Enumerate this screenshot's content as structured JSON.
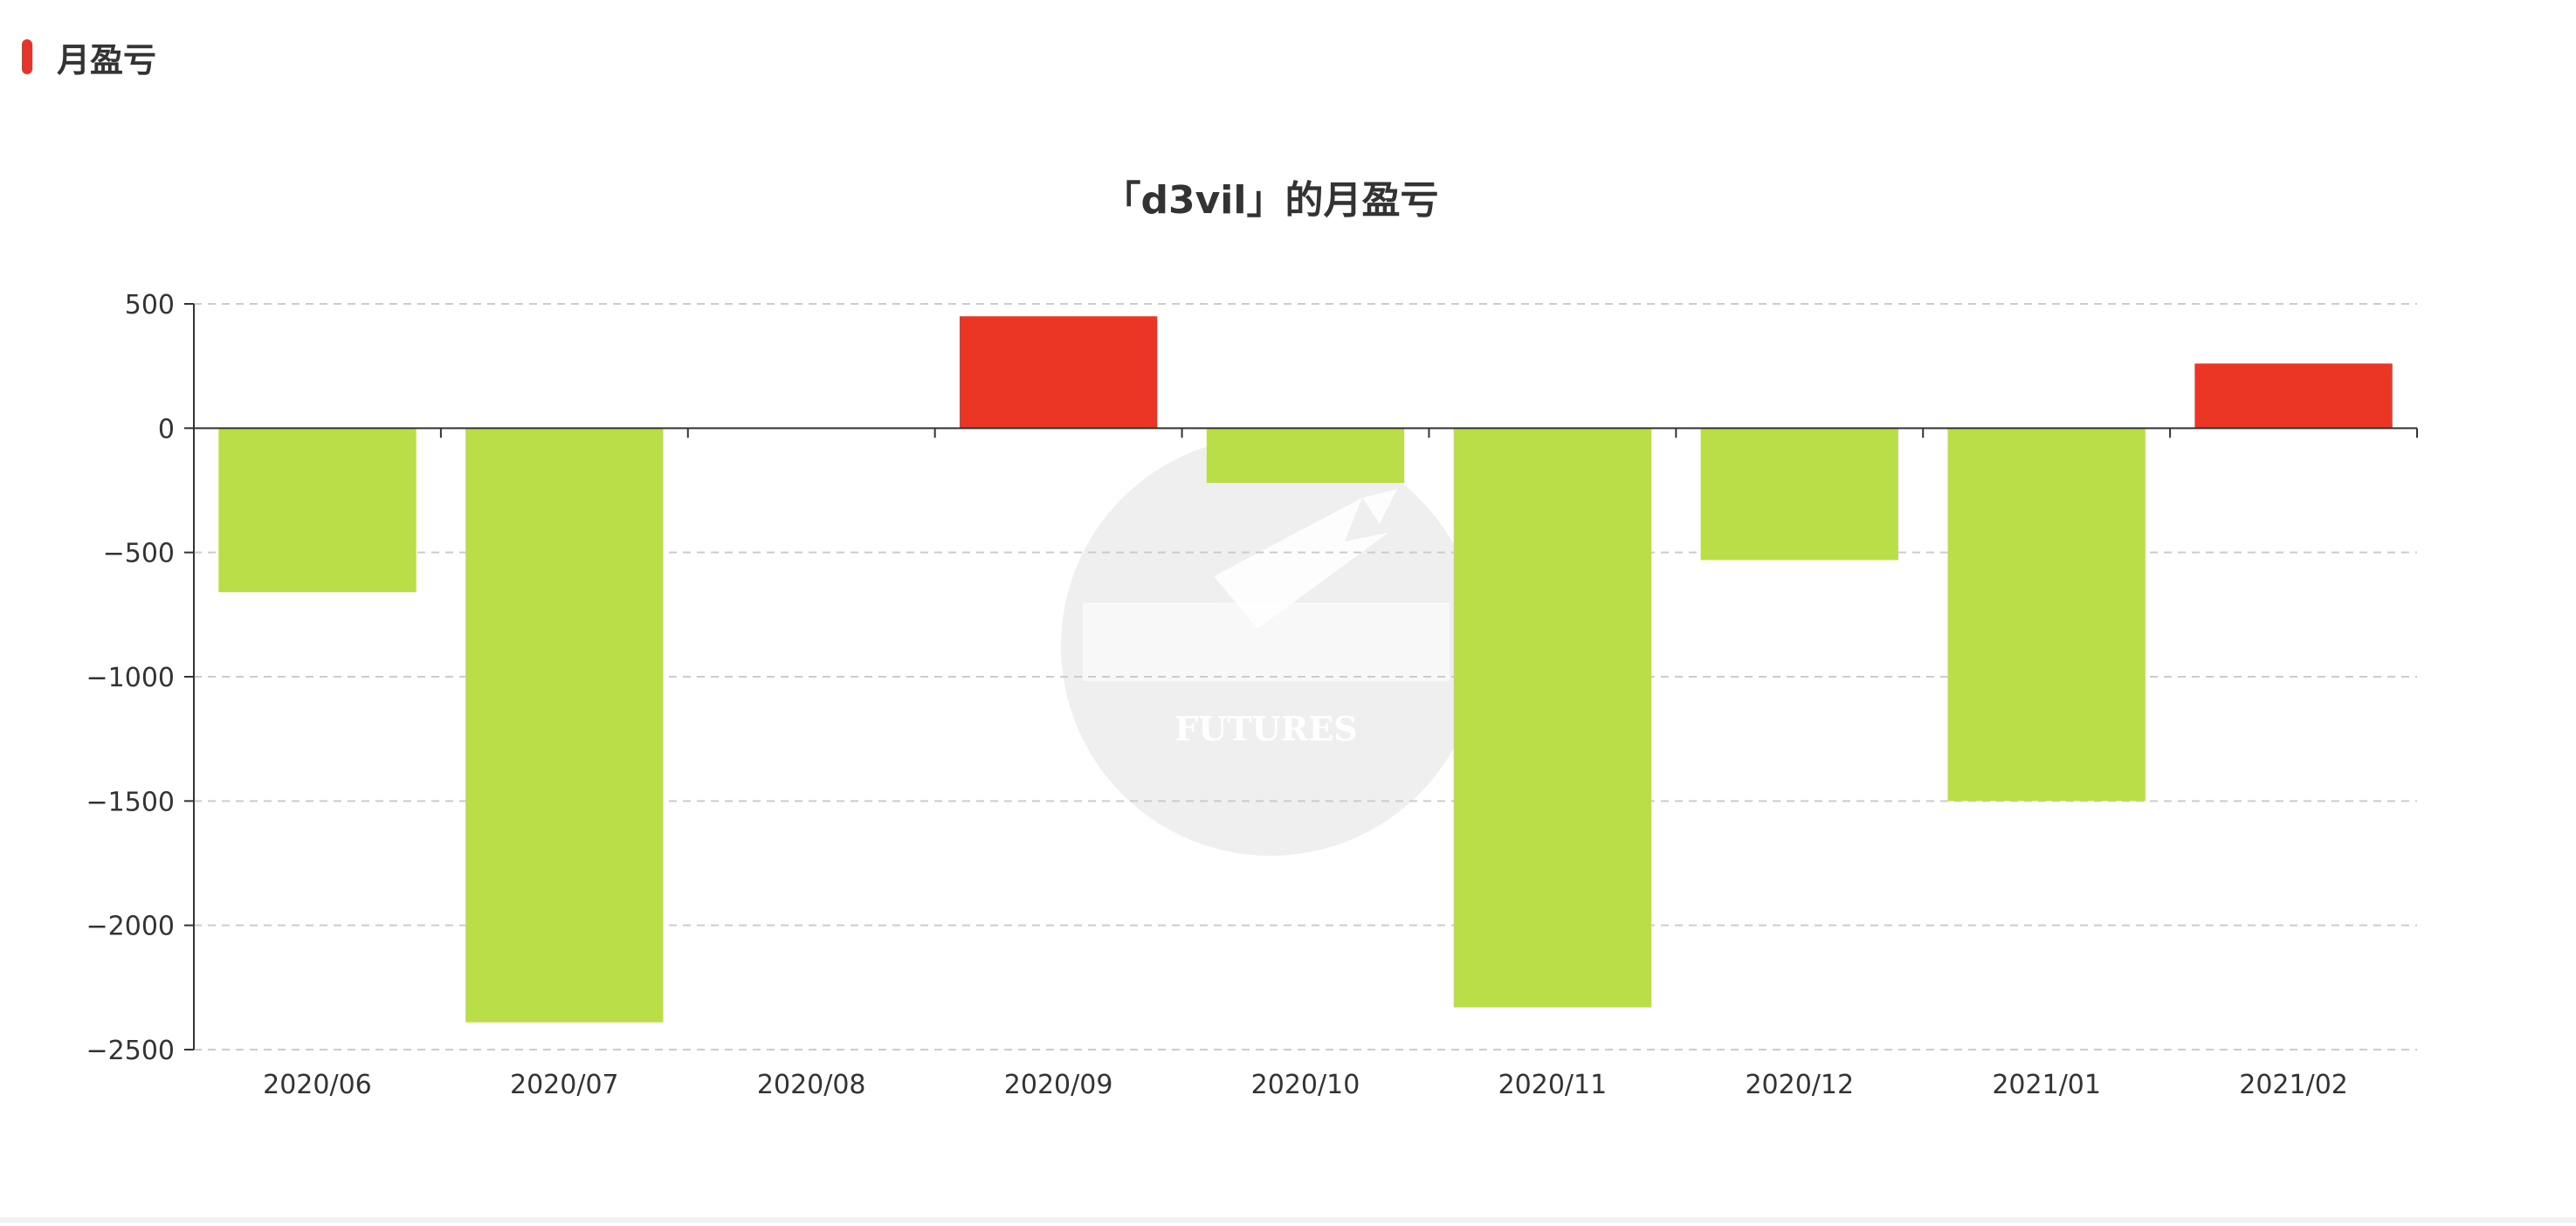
{
  "header": {
    "title": "月盈亏"
  },
  "watermark": {
    "text": "FUTURES"
  },
  "chart_data": {
    "type": "bar",
    "title": "「d3vil」的月盈亏",
    "xlabel": "",
    "ylabel": "",
    "categories": [
      "2020/06",
      "2020/07",
      "2020/08",
      "2020/09",
      "2020/10",
      "2020/11",
      "2020/12",
      "2021/01",
      "2021/02"
    ],
    "values": [
      -660,
      -2390,
      0,
      450,
      -220,
      -2330,
      -530,
      -1500,
      260
    ],
    "ylim": [
      -2500,
      500
    ],
    "yticks": [
      500,
      0,
      -500,
      -1000,
      -1500,
      -2000,
      -2500
    ],
    "ytick_labels": [
      "500",
      "0",
      "−500",
      "−1000",
      "−1500",
      "−2000",
      "−2500"
    ],
    "grid": true,
    "colors": {
      "positive": "#eb3626",
      "negative": "#bade48",
      "axis": "#333333",
      "grid": "#cccccc",
      "text": "#333333"
    }
  }
}
